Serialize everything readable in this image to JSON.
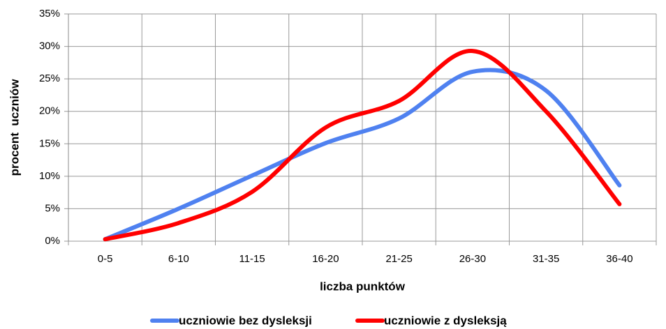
{
  "chart_data": {
    "type": "line",
    "categories": [
      "0-5",
      "6-10",
      "11-15",
      "16-20",
      "21-25",
      "26-30",
      "31-35",
      "36-40"
    ],
    "series": [
      {
        "name": "uczniowie bez dysleksji",
        "color": "#4f81f0",
        "values": [
          0.3,
          5.0,
          10.1,
          15.1,
          18.9,
          26.1,
          23.2,
          8.6
        ]
      },
      {
        "name": "uczniowie z dysleksją",
        "color": "#ff0000",
        "values": [
          0.3,
          2.8,
          7.6,
          17.5,
          21.6,
          29.3,
          20.0,
          5.7
        ]
      }
    ],
    "xlabel": "liczba punktów",
    "ylabel": "procent  uczniów",
    "ylim": [
      0,
      35
    ],
    "yticks": [
      {
        "value": 0,
        "label": "0%"
      },
      {
        "value": 5,
        "label": "5%"
      },
      {
        "value": 10,
        "label": "10%"
      },
      {
        "value": 15,
        "label": "15%"
      },
      {
        "value": 20,
        "label": "20%"
      },
      {
        "value": 25,
        "label": "25%"
      },
      {
        "value": 30,
        "label": "30%"
      },
      {
        "value": 35,
        "label": "35%"
      }
    ],
    "grid": true,
    "legend": "bottom"
  }
}
